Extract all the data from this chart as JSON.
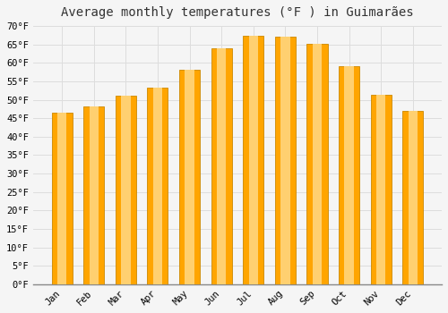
{
  "title": "Average monthly temperatures (°F ) in Guimarães",
  "months": [
    "Jan",
    "Feb",
    "Mar",
    "Apr",
    "May",
    "Jun",
    "Jul",
    "Aug",
    "Sep",
    "Oct",
    "Nov",
    "Dec"
  ],
  "values": [
    46.4,
    48.2,
    51.1,
    53.2,
    58.1,
    64.0,
    67.3,
    67.1,
    65.1,
    59.0,
    51.3,
    47.1
  ],
  "bar_color_main": "#FFA500",
  "bar_color_light": "#FFD070",
  "bar_edge_color": "#CC8800",
  "background_color": "#f5f5f5",
  "plot_bg_color": "#f5f5f5",
  "grid_color": "#dddddd",
  "ylim": [
    0,
    70
  ],
  "yticks": [
    0,
    5,
    10,
    15,
    20,
    25,
    30,
    35,
    40,
    45,
    50,
    55,
    60,
    65,
    70
  ],
  "title_fontsize": 10,
  "tick_fontsize": 7.5,
  "ylabel_fmt": "°F",
  "bar_width": 0.65
}
